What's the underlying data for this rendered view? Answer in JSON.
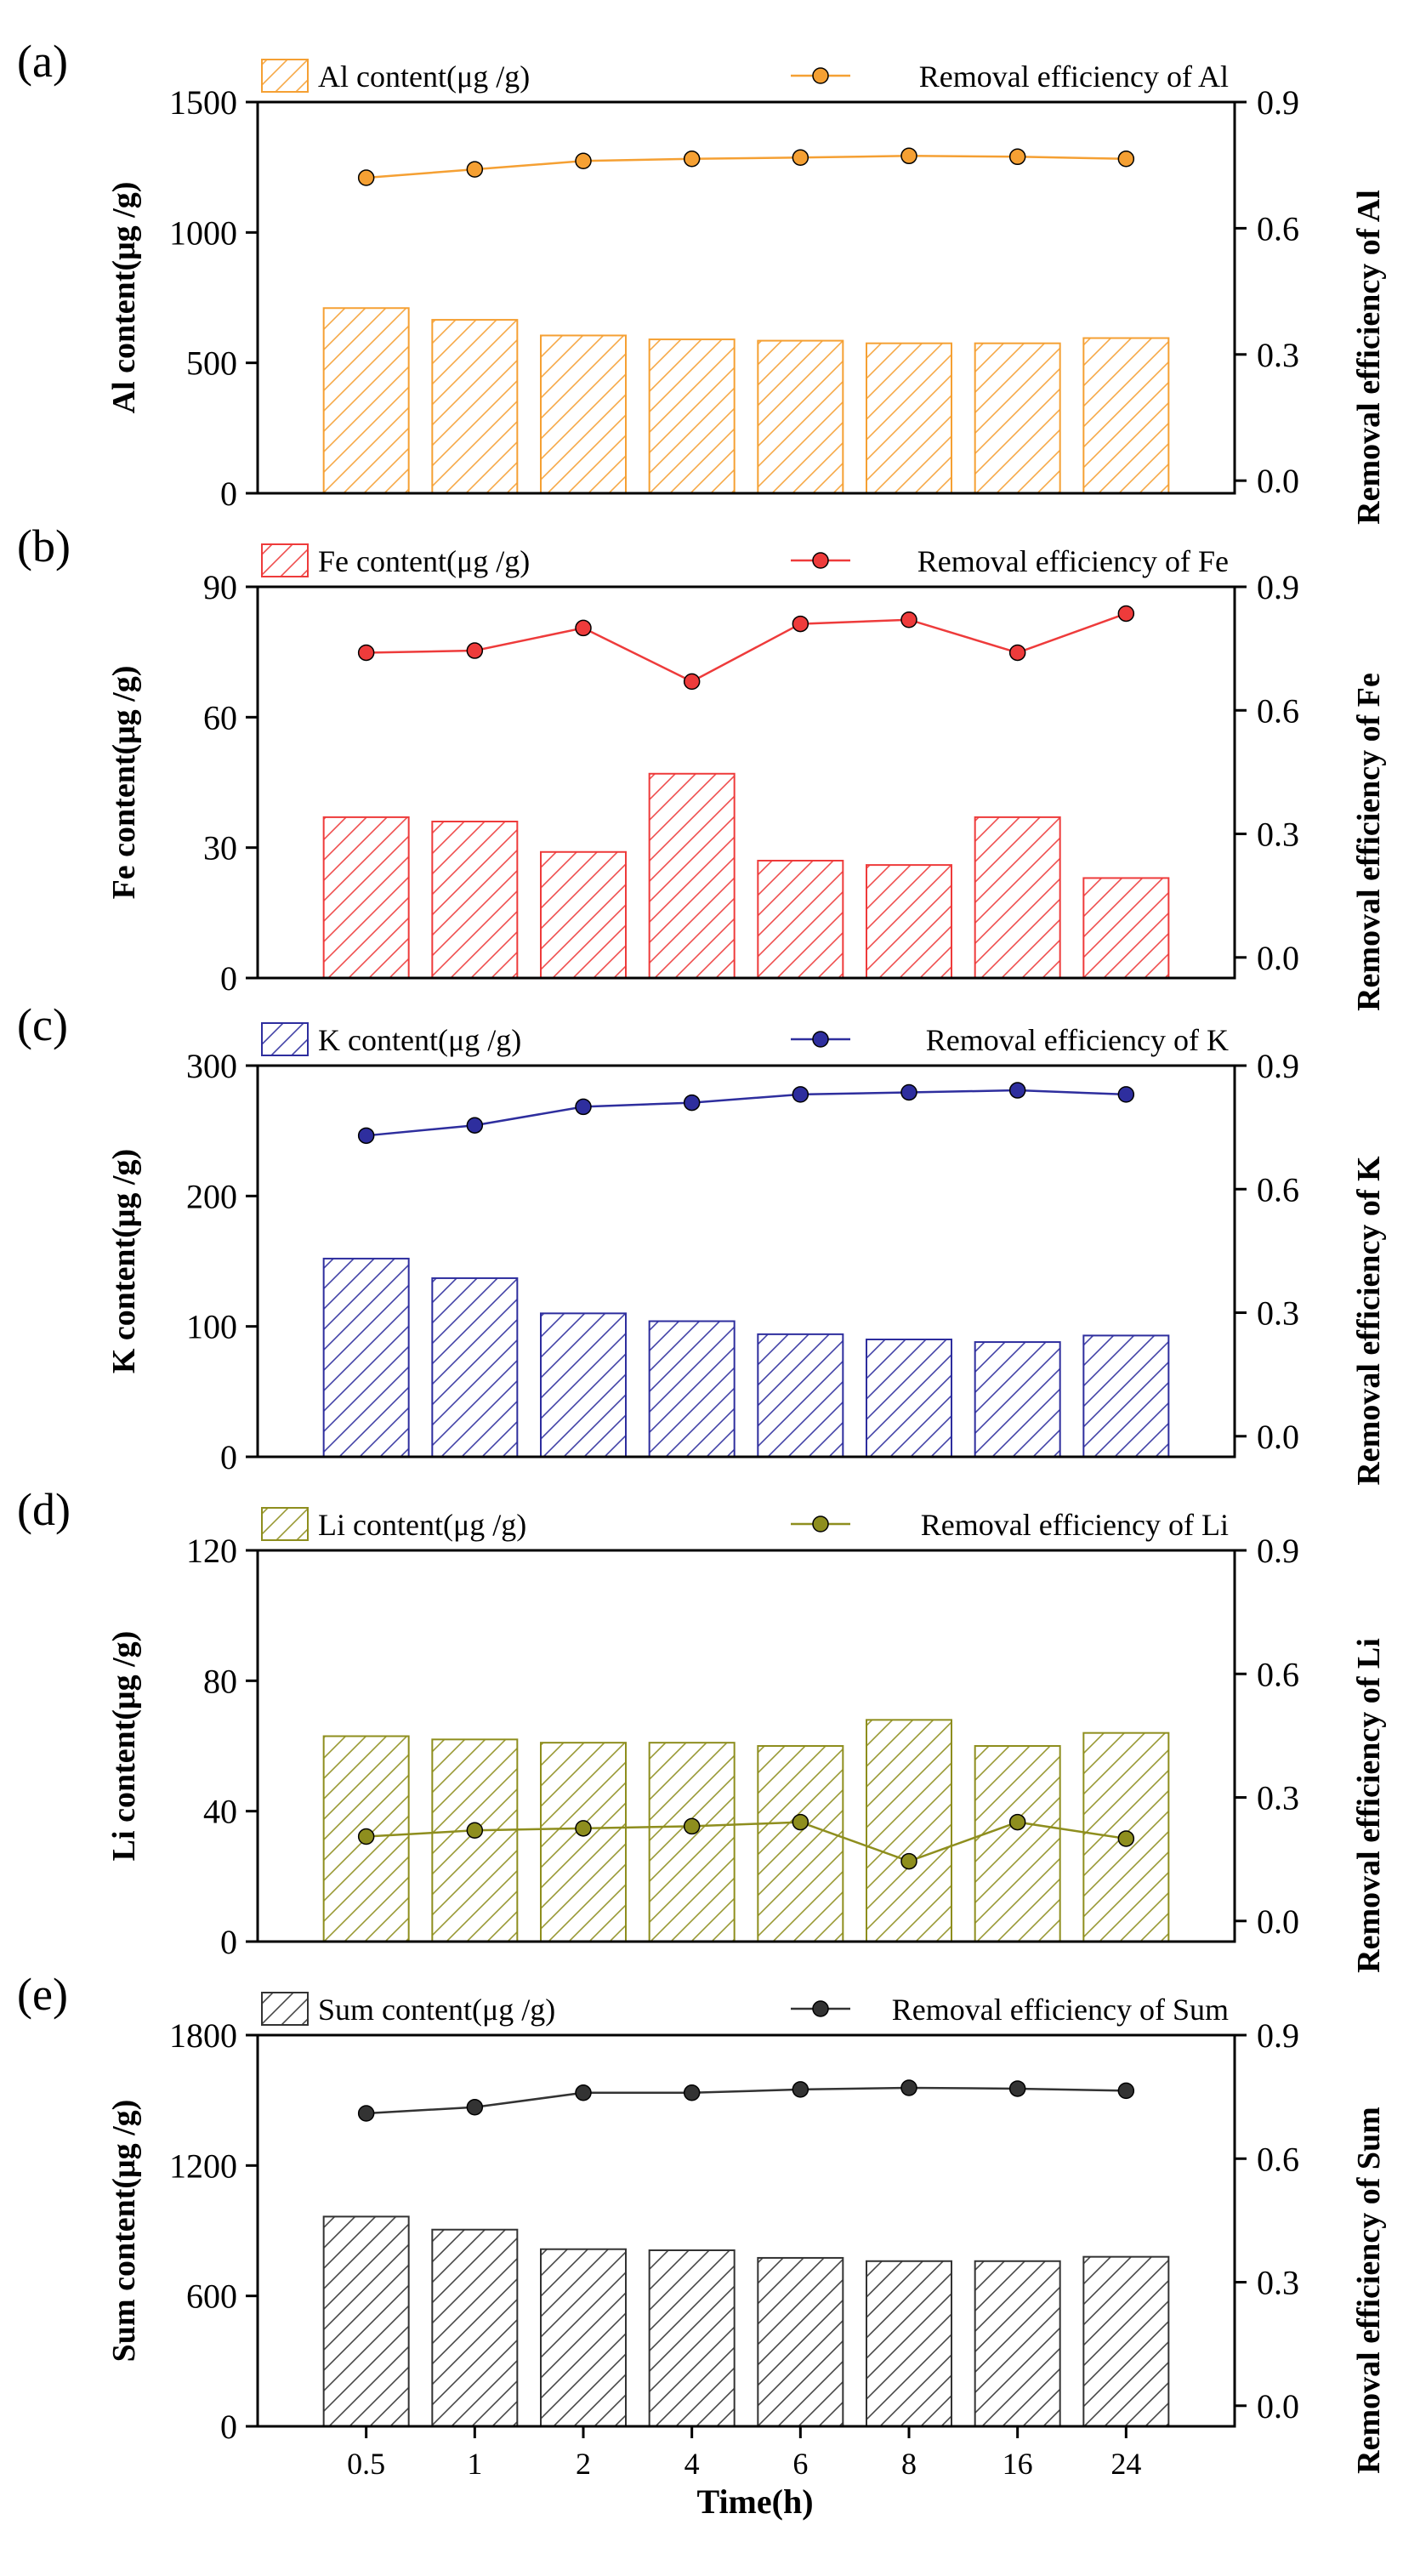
{
  "x_axis": {
    "title": "Time(h)",
    "categories": [
      "0.5",
      "1",
      "2",
      "4",
      "6",
      "8",
      "16",
      "24"
    ]
  },
  "chart_data": [
    {
      "type": "bar",
      "panel_label": "(a)",
      "color": "#F5A033",
      "categories": [
        "0.5",
        "1",
        "2",
        "4",
        "6",
        "8",
        "16",
        "24"
      ],
      "ylabel": "Al content(μg /g)",
      "y2label": "Removal efficiency of Al",
      "ylim": [
        0,
        1500
      ],
      "yticks": [
        0,
        500,
        1000,
        1500
      ],
      "y2lim": [
        -0.03,
        0.9
      ],
      "y2ticks": [
        "0.0",
        "0.3",
        "0.6",
        "0.9"
      ],
      "series": [
        {
          "name": "Al content(μg /g)",
          "kind": "bar",
          "axis": "left",
          "values": [
            710,
            665,
            605,
            590,
            585,
            575,
            575,
            595
          ]
        },
        {
          "name": "Removal efficiency of Al",
          "kind": "line",
          "axis": "right",
          "values": [
            0.72,
            0.74,
            0.76,
            0.765,
            0.768,
            0.772,
            0.77,
            0.765
          ]
        }
      ]
    },
    {
      "type": "bar",
      "panel_label": "(b)",
      "color": "#EE3B3B",
      "categories": [
        "0.5",
        "1",
        "2",
        "4",
        "6",
        "8",
        "16",
        "24"
      ],
      "ylabel": "Fe content(μg /g)",
      "y2label": "Removal efficiency of Fe",
      "ylim": [
        0,
        90
      ],
      "yticks": [
        0,
        30,
        60,
        90
      ],
      "y2lim": [
        -0.05,
        0.9
      ],
      "y2ticks": [
        "0.0",
        "0.3",
        "0.6",
        "0.9"
      ],
      "series": [
        {
          "name": "Fe content(μg /g)",
          "kind": "bar",
          "axis": "left",
          "values": [
            37,
            36,
            29,
            47,
            27,
            26,
            37,
            23
          ]
        },
        {
          "name": "Removal efficiency of Fe",
          "kind": "line",
          "axis": "right",
          "values": [
            0.74,
            0.745,
            0.8,
            0.67,
            0.81,
            0.82,
            0.74,
            0.835
          ]
        }
      ]
    },
    {
      "type": "bar",
      "panel_label": "(c)",
      "color": "#2E2E9E",
      "categories": [
        "0.5",
        "1",
        "2",
        "4",
        "6",
        "8",
        "16",
        "24"
      ],
      "ylabel": "K content(μg /g)",
      "y2label": "Removal efficiency of K",
      "ylim": [
        0,
        300
      ],
      "yticks": [
        0,
        100,
        200,
        300
      ],
      "y2lim": [
        -0.05,
        0.9
      ],
      "y2ticks": [
        "0.0",
        "0.3",
        "0.6",
        "0.9"
      ],
      "series": [
        {
          "name": "K content(μg /g)",
          "kind": "bar",
          "axis": "left",
          "values": [
            152,
            137,
            110,
            104,
            94,
            90,
            88,
            93
          ]
        },
        {
          "name": "Removal efficiency of K",
          "kind": "line",
          "axis": "right",
          "values": [
            0.73,
            0.755,
            0.8,
            0.81,
            0.83,
            0.835,
            0.84,
            0.83
          ]
        }
      ]
    },
    {
      "type": "bar",
      "panel_label": "(d)",
      "color": "#8E8E1E",
      "categories": [
        "0.5",
        "1",
        "2",
        "4",
        "6",
        "8",
        "16",
        "24"
      ],
      "ylabel": "Li content(μg /g)",
      "y2label": "Removal efficiency of Li",
      "ylim": [
        0,
        120
      ],
      "yticks": [
        0,
        40,
        80,
        120
      ],
      "y2lim": [
        -0.05,
        0.9
      ],
      "y2ticks": [
        "0.0",
        "0.3",
        "0.6",
        "0.9"
      ],
      "series": [
        {
          "name": "Li content(μg /g)",
          "kind": "bar",
          "axis": "left",
          "values": [
            63,
            62,
            61,
            61,
            60,
            68,
            60,
            64
          ]
        },
        {
          "name": "Removal efficiency of Li",
          "kind": "line",
          "axis": "right",
          "values": [
            0.205,
            0.22,
            0.225,
            0.23,
            0.24,
            0.145,
            0.24,
            0.2
          ]
        }
      ]
    },
    {
      "type": "bar",
      "panel_label": "(e)",
      "color": "#333333",
      "categories": [
        "0.5",
        "1",
        "2",
        "4",
        "6",
        "8",
        "16",
        "24"
      ],
      "ylabel": "Sum content(μg /g)",
      "y2label": "Removal efficiency of Sum",
      "ylim": [
        0,
        1800
      ],
      "yticks": [
        0,
        600,
        1200,
        1800
      ],
      "y2lim": [
        -0.05,
        0.9
      ],
      "y2ticks": [
        "0.0",
        "0.3",
        "0.6",
        "0.9"
      ],
      "series": [
        {
          "name": "Sum content(μg /g)",
          "kind": "bar",
          "axis": "left",
          "values": [
            965,
            905,
            815,
            810,
            775,
            760,
            760,
            780
          ]
        },
        {
          "name": "Removal efficiency of Sum",
          "kind": "line",
          "axis": "right",
          "values": [
            0.71,
            0.725,
            0.76,
            0.76,
            0.768,
            0.772,
            0.77,
            0.765
          ]
        }
      ]
    }
  ]
}
